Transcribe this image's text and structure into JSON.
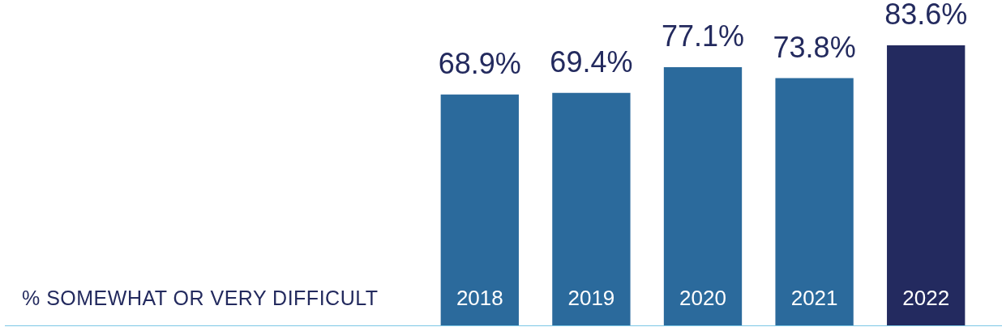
{
  "chart_data": {
    "type": "bar",
    "ylabel": "% SOMEWHAT OR VERY DIFFICULT",
    "categories": [
      "2018",
      "2019",
      "2020",
      "2021",
      "2022"
    ],
    "values": [
      68.9,
      69.4,
      77.1,
      73.8,
      83.6
    ],
    "colors": [
      "#2b6a9c",
      "#2b6a9c",
      "#2b6a9c",
      "#2b6a9c",
      "#232a5f"
    ],
    "value_labels": [
      "68.9%",
      "69.4%",
      "77.1%",
      "73.8%",
      "83.6%"
    ],
    "legend": false
  }
}
